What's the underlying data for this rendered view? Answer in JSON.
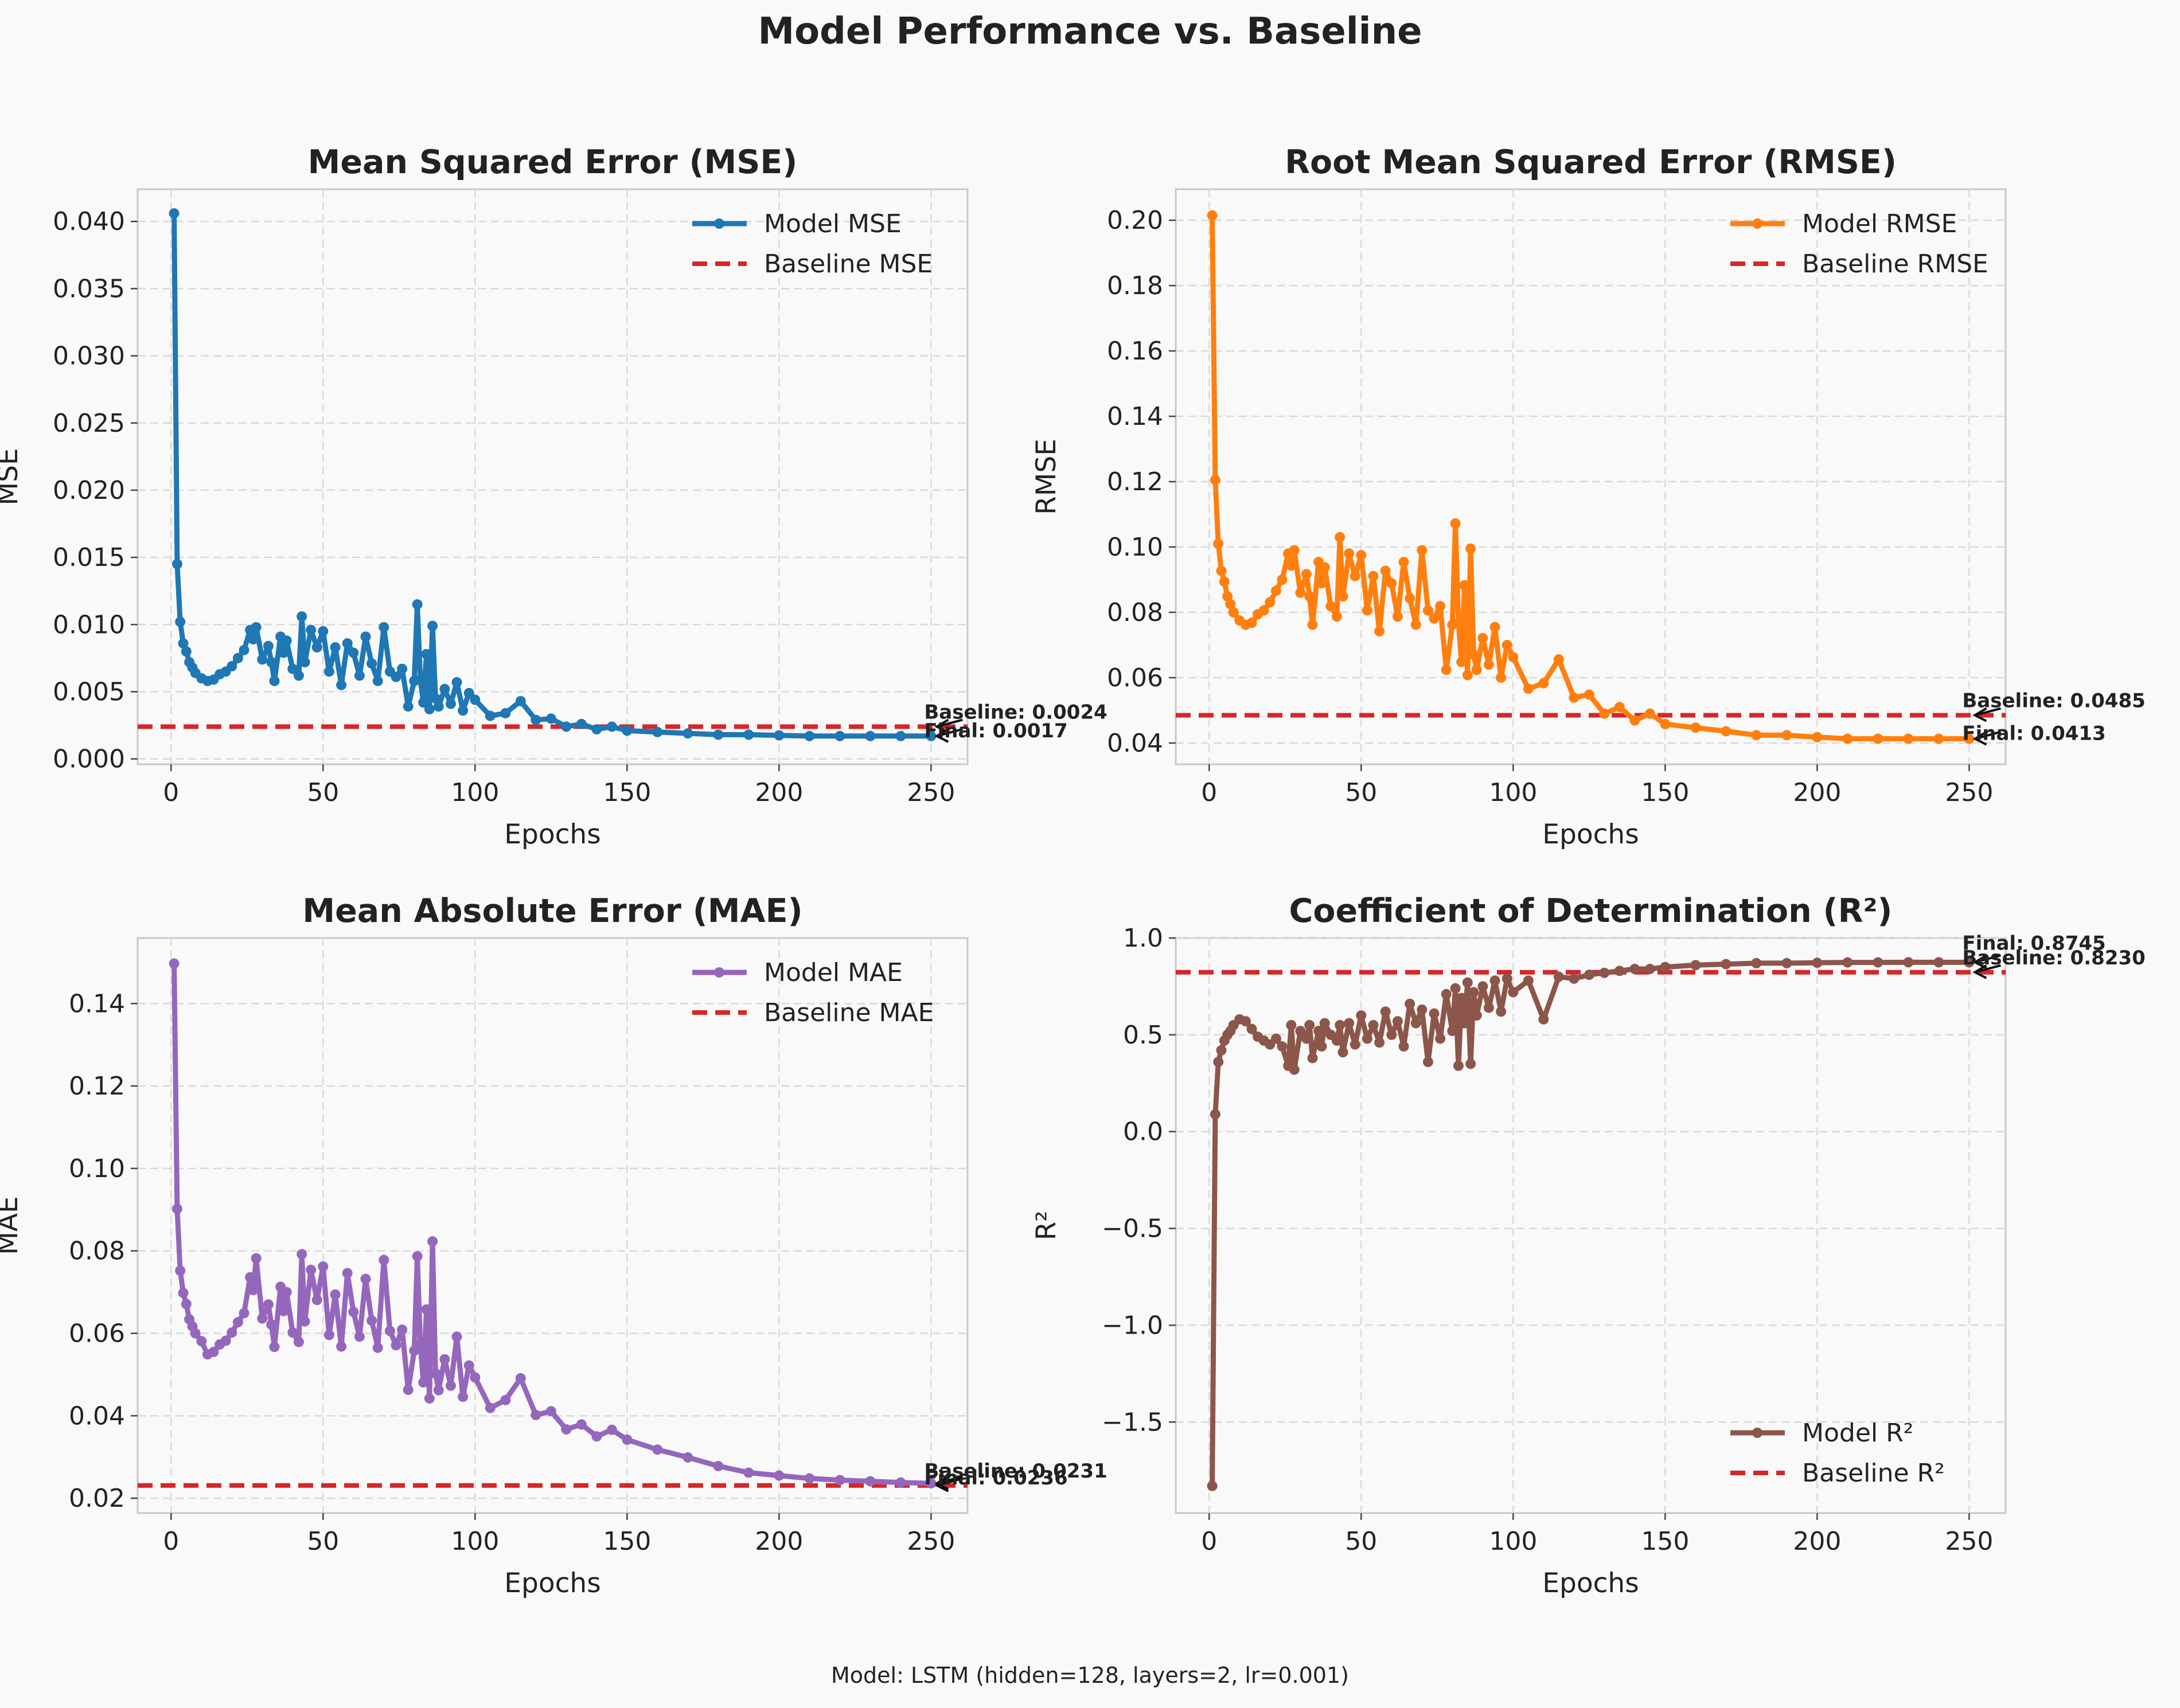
{
  "figure": {
    "title": "Model Performance vs. Baseline",
    "footer": "Model: LSTM (hidden=128, layers=2, lr=0.001)"
  },
  "colors": {
    "background": "#f9f9f9",
    "grid": "#d9d9d9",
    "baseline": "#d62728"
  },
  "chart_data": [
    {
      "type": "line",
      "title": "Mean Squared Error (MSE)",
      "xlabel": "Epochs",
      "ylabel": "MSE",
      "xlim": [
        -11,
        262
      ],
      "ylim": [
        -0.0004,
        0.0424
      ],
      "xticks": [
        0,
        50,
        100,
        150,
        200,
        250
      ],
      "xtick_labels": [
        "0",
        "50",
        "100",
        "150",
        "200",
        "250"
      ],
      "yticks": [
        0,
        0.005,
        0.01,
        0.015,
        0.02,
        0.025,
        0.03,
        0.035,
        0.04
      ],
      "ytick_labels": [
        "0.000",
        "0.005",
        "0.010",
        "0.015",
        "0.020",
        "0.025",
        "0.030",
        "0.035",
        "0.040"
      ],
      "grid": true,
      "legend_position": "upper-right",
      "series": [
        {
          "name": "Model MSE",
          "color": "#1f77b4",
          "kind": "model",
          "x": [
            1,
            2,
            3,
            4,
            5,
            6,
            7,
            8,
            10,
            12,
            14,
            16,
            18,
            20,
            22,
            24,
            26,
            27,
            28,
            30,
            32,
            33,
            34,
            36,
            37,
            38,
            40,
            42,
            43,
            44,
            46,
            48,
            50,
            52,
            54,
            56,
            58,
            60,
            62,
            64,
            66,
            68,
            70,
            72,
            74,
            76,
            78,
            80,
            81,
            82,
            83,
            84,
            85,
            86,
            87,
            88,
            90,
            92,
            94,
            96,
            98,
            100,
            105,
            110,
            115,
            120,
            125,
            130,
            135,
            140,
            145,
            150,
            160,
            170,
            180,
            190,
            200,
            210,
            220,
            230,
            240,
            250
          ],
          "values": [
            0.0406,
            0.0145,
            0.0102,
            0.0086,
            0.008,
            0.0072,
            0.0068,
            0.0064,
            0.006,
            0.0058,
            0.0059,
            0.0063,
            0.0065,
            0.0069,
            0.0075,
            0.0081,
            0.0096,
            0.0089,
            0.0098,
            0.0074,
            0.0084,
            0.0072,
            0.0058,
            0.0091,
            0.0079,
            0.0088,
            0.0067,
            0.0062,
            0.0106,
            0.0072,
            0.0096,
            0.0083,
            0.0095,
            0.0065,
            0.0083,
            0.0055,
            0.0086,
            0.0079,
            0.0062,
            0.0091,
            0.0071,
            0.0058,
            0.0098,
            0.0065,
            0.0061,
            0.0067,
            0.0039,
            0.0058,
            0.0115,
            0.0059,
            0.0042,
            0.0078,
            0.0037,
            0.0099,
            0.0045,
            0.0039,
            0.0052,
            0.0041,
            0.0057,
            0.0036,
            0.0049,
            0.0044,
            0.0032,
            0.0034,
            0.0043,
            0.0029,
            0.003,
            0.0024,
            0.0026,
            0.0022,
            0.0024,
            0.0021,
            0.002,
            0.0019,
            0.0018,
            0.0018,
            0.00175,
            0.0017,
            0.0017,
            0.0017,
            0.0017,
            0.0017
          ]
        },
        {
          "name": "Baseline MSE",
          "color": "#d62728",
          "kind": "baseline",
          "y": 0.0024
        }
      ],
      "annotations": [
        {
          "text": "Baseline: 0.0024",
          "x": 250,
          "y": 0.0024
        },
        {
          "text": "Final: 0.0017",
          "x": 250,
          "y": 0.0017
        }
      ]
    },
    {
      "type": "line",
      "title": "Root Mean Squared Error (RMSE)",
      "xlabel": "Epochs",
      "ylabel": "RMSE",
      "xlim": [
        -11,
        262
      ],
      "ylim": [
        0.0335,
        0.2095
      ],
      "xticks": [
        0,
        50,
        100,
        150,
        200,
        250
      ],
      "xtick_labels": [
        "0",
        "50",
        "100",
        "150",
        "200",
        "250"
      ],
      "yticks": [
        0.04,
        0.06,
        0.08,
        0.1,
        0.12,
        0.14,
        0.16,
        0.18,
        0.2
      ],
      "ytick_labels": [
        "0.04",
        "0.06",
        "0.08",
        "0.10",
        "0.12",
        "0.14",
        "0.16",
        "0.18",
        "0.20"
      ],
      "grid": true,
      "legend_position": "upper-right",
      "series": [
        {
          "name": "Model RMSE",
          "color": "#ff7f0e",
          "kind": "model",
          "x": [
            1,
            2,
            3,
            4,
            5,
            6,
            7,
            8,
            10,
            12,
            14,
            16,
            18,
            20,
            22,
            24,
            26,
            27,
            28,
            30,
            32,
            33,
            34,
            36,
            37,
            38,
            40,
            42,
            43,
            44,
            46,
            48,
            50,
            52,
            54,
            56,
            58,
            60,
            62,
            64,
            66,
            68,
            70,
            72,
            74,
            76,
            78,
            80,
            81,
            82,
            83,
            84,
            85,
            86,
            87,
            88,
            90,
            92,
            94,
            96,
            98,
            100,
            105,
            110,
            115,
            120,
            125,
            130,
            135,
            140,
            145,
            150,
            160,
            170,
            180,
            190,
            200,
            210,
            220,
            230,
            240,
            250
          ],
          "values": [
            0.2015,
            0.1205,
            0.101,
            0.0927,
            0.0894,
            0.0849,
            0.0825,
            0.08,
            0.0775,
            0.0762,
            0.0768,
            0.0794,
            0.0806,
            0.0831,
            0.0866,
            0.09,
            0.098,
            0.0943,
            0.099,
            0.086,
            0.0917,
            0.0849,
            0.0762,
            0.0954,
            0.0889,
            0.0938,
            0.0819,
            0.0787,
            0.103,
            0.0849,
            0.098,
            0.0911,
            0.0975,
            0.0806,
            0.0911,
            0.0742,
            0.0927,
            0.0889,
            0.0787,
            0.0954,
            0.0843,
            0.0762,
            0.099,
            0.0806,
            0.0781,
            0.0819,
            0.0624,
            0.0762,
            0.1072,
            0.0768,
            0.0648,
            0.0883,
            0.0608,
            0.0995,
            0.0671,
            0.0624,
            0.0721,
            0.064,
            0.0755,
            0.06,
            0.07,
            0.0663,
            0.0566,
            0.0583,
            0.0656,
            0.0539,
            0.0548,
            0.049,
            0.051,
            0.0469,
            0.049,
            0.0458,
            0.0447,
            0.0436,
            0.0424,
            0.0424,
            0.0418,
            0.0413,
            0.0413,
            0.0413,
            0.0413,
            0.0413
          ]
        },
        {
          "name": "Baseline RMSE",
          "color": "#d62728",
          "kind": "baseline",
          "y": 0.0485
        }
      ],
      "annotations": [
        {
          "text": "Baseline: 0.0485",
          "x": 250,
          "y": 0.0485
        },
        {
          "text": "Final: 0.0413",
          "x": 250,
          "y": 0.0413
        }
      ]
    },
    {
      "type": "line",
      "title": "Mean Absolute Error (MAE)",
      "xlabel": "Epochs",
      "ylabel": "MAE",
      "xlim": [
        -11,
        262
      ],
      "ylim": [
        0.0164,
        0.1559
      ],
      "xticks": [
        0,
        50,
        100,
        150,
        200,
        250
      ],
      "xtick_labels": [
        "0",
        "50",
        "100",
        "150",
        "200",
        "250"
      ],
      "yticks": [
        0.02,
        0.04,
        0.06,
        0.08,
        0.1,
        0.12,
        0.14
      ],
      "ytick_labels": [
        "0.02",
        "0.04",
        "0.06",
        "0.08",
        "0.10",
        "0.12",
        "0.14"
      ],
      "grid": true,
      "legend_position": "upper-right",
      "series": [
        {
          "name": "Model MAE",
          "color": "#9467bd",
          "kind": "model",
          "x": [
            1,
            2,
            3,
            4,
            5,
            6,
            7,
            8,
            10,
            12,
            14,
            16,
            18,
            20,
            22,
            24,
            26,
            27,
            28,
            30,
            32,
            33,
            34,
            36,
            37,
            38,
            40,
            42,
            43,
            44,
            46,
            48,
            50,
            52,
            54,
            56,
            58,
            60,
            62,
            64,
            66,
            68,
            70,
            72,
            74,
            76,
            78,
            80,
            81,
            82,
            83,
            84,
            85,
            86,
            87,
            88,
            90,
            92,
            94,
            96,
            98,
            100,
            105,
            110,
            115,
            120,
            125,
            130,
            135,
            140,
            145,
            150,
            160,
            170,
            180,
            190,
            200,
            210,
            220,
            230,
            240,
            250
          ],
          "values": [
            0.1497,
            0.0902,
            0.0752,
            0.0698,
            0.0671,
            0.0634,
            0.0617,
            0.06,
            0.0581,
            0.0549,
            0.0555,
            0.0573,
            0.0582,
            0.0602,
            0.0627,
            0.0649,
            0.0736,
            0.0705,
            0.0782,
            0.0636,
            0.067,
            0.0621,
            0.0567,
            0.0713,
            0.0654,
            0.07,
            0.0602,
            0.0579,
            0.0792,
            0.0629,
            0.0754,
            0.0681,
            0.0762,
            0.0596,
            0.0694,
            0.0568,
            0.0746,
            0.0652,
            0.0592,
            0.0732,
            0.0631,
            0.0565,
            0.0778,
            0.0606,
            0.0571,
            0.0609,
            0.0463,
            0.0558,
            0.0787,
            0.0573,
            0.0481,
            0.0658,
            0.0442,
            0.0823,
            0.0503,
            0.0462,
            0.0537,
            0.0473,
            0.0592,
            0.0446,
            0.0522,
            0.0493,
            0.0419,
            0.0438,
            0.0491,
            0.0402,
            0.0411,
            0.0367,
            0.0379,
            0.035,
            0.0366,
            0.0342,
            0.0318,
            0.0299,
            0.0278,
            0.0262,
            0.0255,
            0.0248,
            0.0244,
            0.0241,
            0.0238,
            0.0236
          ]
        },
        {
          "name": "Baseline MAE",
          "color": "#d62728",
          "kind": "baseline",
          "y": 0.0231
        }
      ],
      "annotations": [
        {
          "text": "Baseline: 0.0231",
          "x": 250,
          "y": 0.0231
        },
        {
          "text": "Final: 0.0236",
          "x": 250,
          "y": 0.0236
        }
      ]
    },
    {
      "type": "line",
      "title": "Coefficient of Determination (R²)",
      "xlabel": "Epochs",
      "ylabel": "R²",
      "xlim": [
        -11,
        262
      ],
      "ylim": [
        -1.97,
        1.0
      ],
      "xticks": [
        0,
        50,
        100,
        150,
        200,
        250
      ],
      "xtick_labels": [
        "0",
        "50",
        "100",
        "150",
        "200",
        "250"
      ],
      "yticks": [
        -1.5,
        -1.0,
        -0.5,
        0.0,
        0.5,
        1.0
      ],
      "ytick_labels": [
        "−1.5",
        "−1.0",
        "−0.5",
        "0.0",
        "0.5",
        "1.0"
      ],
      "grid": true,
      "legend_position": "lower-right",
      "series": [
        {
          "name": "Model R²",
          "color": "#8c564b",
          "kind": "model",
          "x": [
            1,
            2,
            3,
            4,
            5,
            6,
            7,
            8,
            10,
            12,
            14,
            16,
            18,
            20,
            22,
            24,
            26,
            27,
            28,
            30,
            32,
            33,
            34,
            36,
            37,
            38,
            40,
            42,
            43,
            44,
            46,
            48,
            50,
            52,
            54,
            56,
            58,
            60,
            62,
            64,
            66,
            68,
            70,
            72,
            74,
            76,
            78,
            80,
            81,
            82,
            83,
            84,
            85,
            86,
            87,
            88,
            90,
            92,
            94,
            96,
            98,
            100,
            105,
            110,
            115,
            120,
            125,
            130,
            135,
            140,
            145,
            150,
            160,
            170,
            180,
            190,
            200,
            210,
            220,
            230,
            240,
            250
          ],
          "values": [
            -1.83,
            0.09,
            0.36,
            0.42,
            0.47,
            0.5,
            0.52,
            0.55,
            0.58,
            0.57,
            0.53,
            0.49,
            0.47,
            0.45,
            0.48,
            0.44,
            0.34,
            0.55,
            0.32,
            0.52,
            0.48,
            0.55,
            0.38,
            0.52,
            0.44,
            0.56,
            0.5,
            0.47,
            0.55,
            0.41,
            0.56,
            0.45,
            0.6,
            0.48,
            0.55,
            0.46,
            0.62,
            0.5,
            0.57,
            0.44,
            0.66,
            0.56,
            0.63,
            0.36,
            0.61,
            0.48,
            0.71,
            0.52,
            0.74,
            0.34,
            0.69,
            0.56,
            0.77,
            0.35,
            0.72,
            0.6,
            0.75,
            0.64,
            0.78,
            0.62,
            0.79,
            0.72,
            0.78,
            0.58,
            0.8,
            0.79,
            0.81,
            0.82,
            0.83,
            0.84,
            0.84,
            0.85,
            0.86,
            0.865,
            0.87,
            0.87,
            0.872,
            0.874,
            0.874,
            0.8745,
            0.8745,
            0.8745
          ]
        },
        {
          "name": "Baseline R²",
          "color": "#d62728",
          "kind": "baseline",
          "y": 0.823
        }
      ],
      "annotations": [
        {
          "text": "Final: 0.8745",
          "x": 250,
          "y": 0.8745
        },
        {
          "text": "Baseline: 0.8230",
          "x": 250,
          "y": 0.823
        }
      ]
    }
  ]
}
